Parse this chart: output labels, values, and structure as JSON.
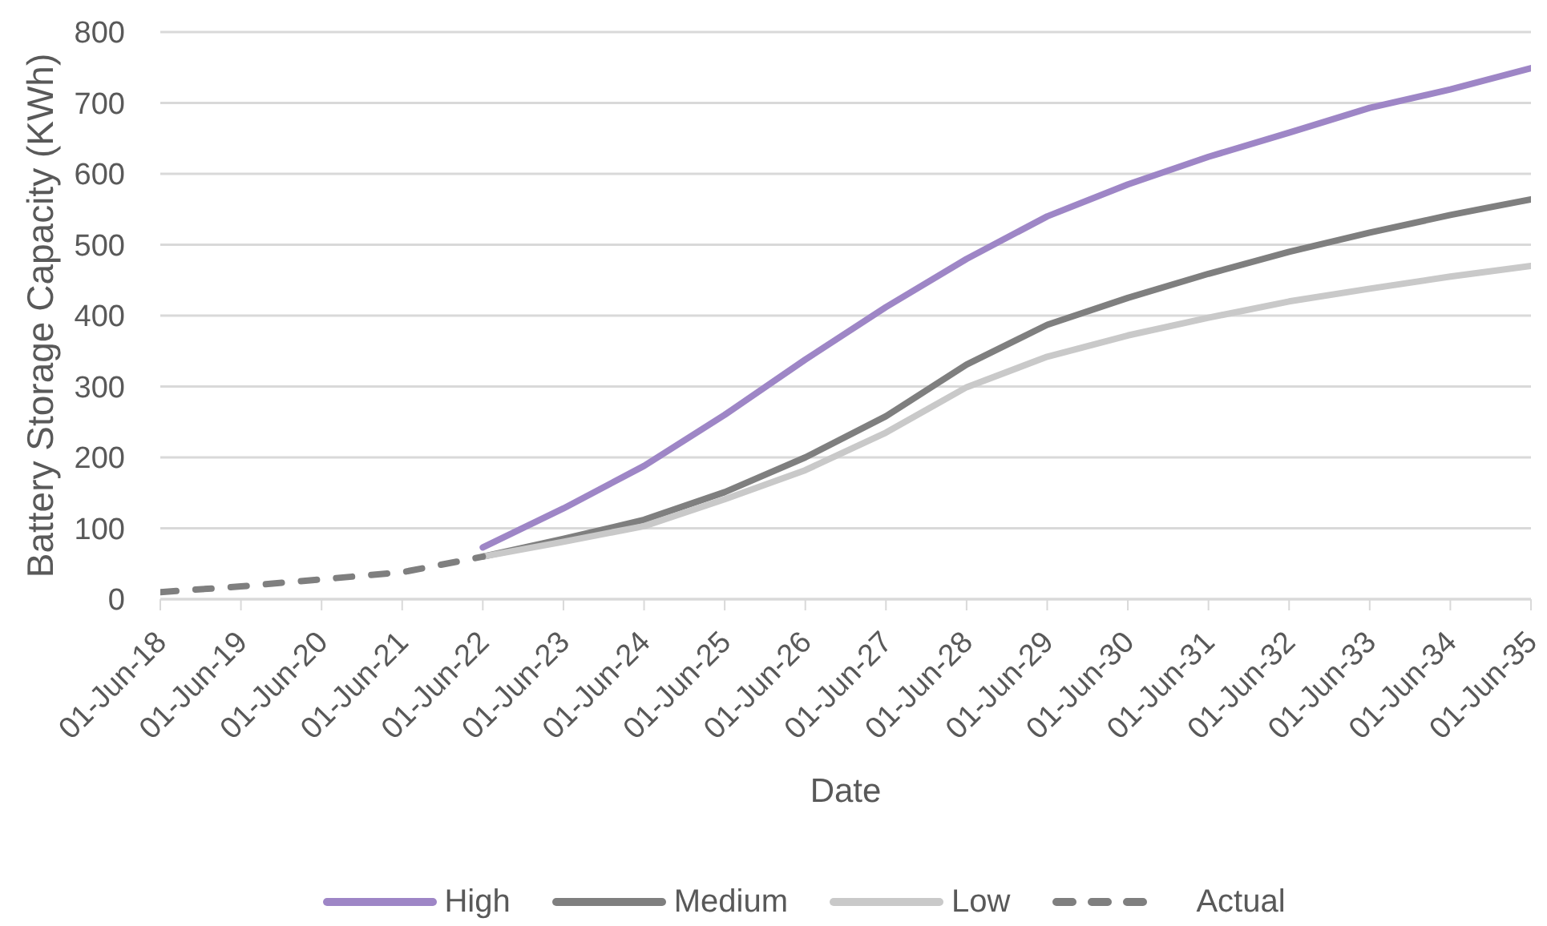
{
  "chart_data": {
    "type": "line",
    "xlabel": "Date",
    "ylabel": "Battery Storage Capacity (KWh)",
    "categories": [
      "01-Jun-18",
      "01-Jun-19",
      "01-Jun-20",
      "01-Jun-21",
      "01-Jun-22",
      "01-Jun-23",
      "01-Jun-24",
      "01-Jun-25",
      "01-Jun-26",
      "01-Jun-27",
      "01-Jun-28",
      "01-Jun-29",
      "01-Jun-30",
      "01-Jun-31",
      "01-Jun-32",
      "01-Jun-33",
      "01-Jun-34",
      "01-Jun-35"
    ],
    "series": [
      {
        "name": "High",
        "color": "#9e86c6",
        "values": [
          null,
          null,
          null,
          null,
          73,
          128,
          188,
          260,
          338,
          412,
          480,
          540,
          585,
          624,
          658,
          693,
          719,
          749
        ]
      },
      {
        "name": "Medium",
        "color": "#7f7f7f",
        "values": [
          null,
          null,
          null,
          null,
          60,
          85,
          112,
          151,
          200,
          258,
          331,
          387,
          425,
          459,
          490,
          517,
          542,
          564
        ]
      },
      {
        "name": "Low",
        "color": "#c9c9c9",
        "values": [
          null,
          null,
          null,
          null,
          60,
          81,
          103,
          141,
          182,
          235,
          299,
          342,
          372,
          397,
          420,
          438,
          455,
          470
        ]
      },
      {
        "name": "Actual",
        "color": "#7f7f7f",
        "line_style": "dashed",
        "values": [
          10,
          18,
          28,
          38,
          60,
          null,
          null,
          null,
          null,
          null,
          null,
          null,
          null,
          null,
          null,
          null,
          null,
          null
        ]
      }
    ],
    "ylim": [
      0,
      800
    ],
    "yticks": [
      0,
      100,
      200,
      300,
      400,
      500,
      600,
      700,
      800
    ],
    "grid": "y",
    "legend": "bottom",
    "line_style": "solid"
  }
}
